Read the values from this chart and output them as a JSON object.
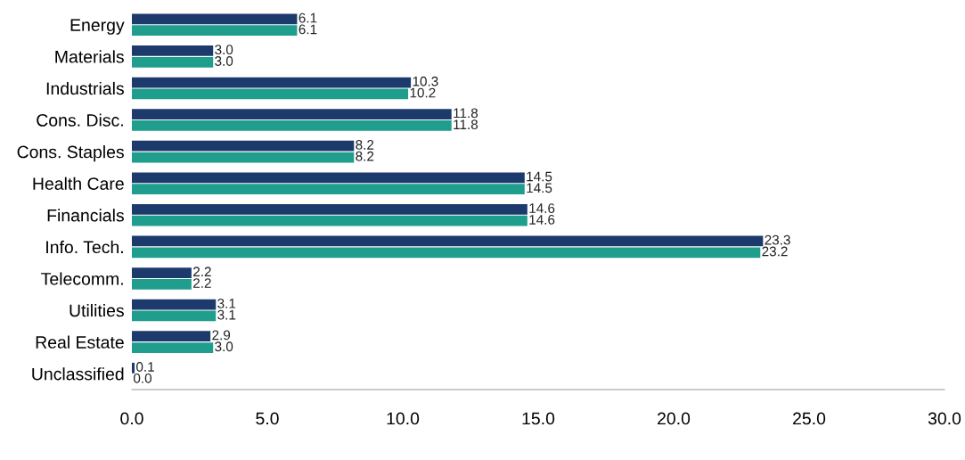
{
  "chart_data": {
    "type": "bar",
    "orientation": "horizontal",
    "categories": [
      "Energy",
      "Materials",
      "Industrials",
      "Cons. Disc.",
      "Cons. Staples",
      "Health Care",
      "Financials",
      "Info. Tech.",
      "Telecomm.",
      "Utilities",
      "Real Estate",
      "Unclassified"
    ],
    "series": [
      {
        "color": "#1c3a6b",
        "values": [
          6.1,
          3.0,
          10.3,
          11.8,
          8.2,
          14.5,
          14.6,
          23.3,
          2.2,
          3.1,
          2.9,
          0.1
        ],
        "value_labels": [
          "6.1",
          "3.0",
          "10.3",
          "11.8",
          "8.2",
          "14.5",
          "14.6",
          "23.3",
          "2.2",
          "3.1",
          "2.9",
          "0.1"
        ]
      },
      {
        "color": "#1f9e8e",
        "values": [
          6.1,
          3.0,
          10.2,
          11.8,
          8.2,
          14.5,
          14.6,
          23.2,
          2.2,
          3.1,
          3.0,
          0.0
        ],
        "value_labels": [
          "6.1",
          "3.0",
          "10.2",
          "11.8",
          "8.2",
          "14.5",
          "14.6",
          "23.2",
          "2.2",
          "3.1",
          "3.0",
          "0.0"
        ]
      }
    ],
    "xlim": [
      0,
      30
    ],
    "xticks": [
      {
        "value": 0,
        "label": "0.0"
      },
      {
        "value": 5,
        "label": "5.0"
      },
      {
        "value": 10,
        "label": "10.0"
      },
      {
        "value": 15,
        "label": "15.0"
      },
      {
        "value": 20,
        "label": "20.0"
      },
      {
        "value": 25,
        "label": "25.0"
      },
      {
        "value": 30,
        "label": "30.0"
      }
    ],
    "grid": false
  }
}
